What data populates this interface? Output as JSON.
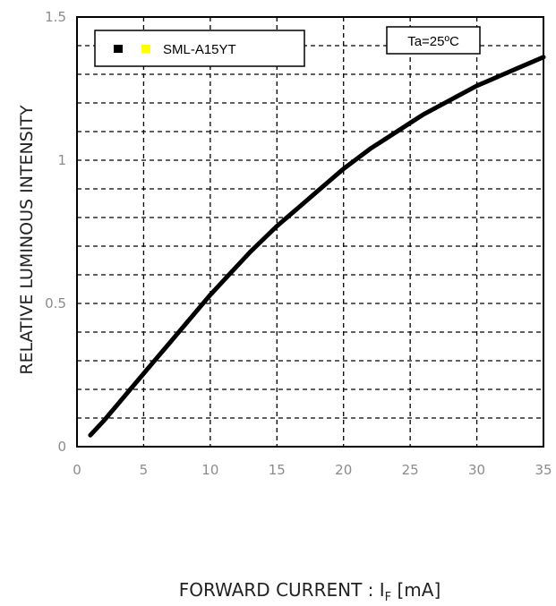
{
  "chart_data": {
    "type": "line",
    "xlabel_main": "FORWARD CURRENT : I",
    "xlabel_sub": "F",
    "xlabel_unit": " [mA]",
    "ylabel": "RELATIVE LUMINOUS INTENSITY",
    "xlim": [
      0,
      35
    ],
    "ylim": [
      0,
      1.5
    ],
    "x_ticks": [
      "0",
      "5",
      "10",
      "15",
      "20",
      "25",
      "30",
      "35"
    ],
    "y_ticks": [
      "0",
      "0.5",
      "1",
      "1.5"
    ],
    "grid": true,
    "annotation": "Ta=25ºC",
    "legend": {
      "position": "top-left",
      "label": "SML-A15YT",
      "colors": [
        "#000000",
        "#ffff00"
      ]
    },
    "series": [
      {
        "name": "SML-A15YT",
        "color": "#000000",
        "x": [
          1,
          2,
          3,
          4,
          5,
          6,
          7,
          8,
          9,
          10,
          11,
          12,
          13,
          14,
          15,
          16,
          17,
          18,
          19,
          20,
          21,
          22,
          23,
          24,
          25,
          26,
          27,
          28,
          29,
          30,
          31,
          32,
          33,
          34,
          35
        ],
        "y": [
          0.04,
          0.09,
          0.145,
          0.2,
          0.255,
          0.31,
          0.365,
          0.42,
          0.475,
          0.53,
          0.58,
          0.63,
          0.68,
          0.725,
          0.77,
          0.81,
          0.85,
          0.89,
          0.93,
          0.97,
          1.005,
          1.04,
          1.07,
          1.1,
          1.13,
          1.16,
          1.185,
          1.21,
          1.235,
          1.26,
          1.28,
          1.3,
          1.32,
          1.34,
          1.36
        ]
      }
    ]
  }
}
